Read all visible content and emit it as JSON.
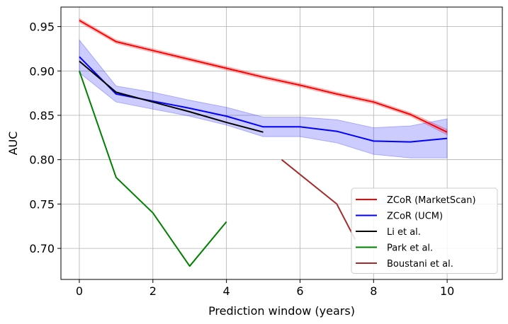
{
  "chart_data": {
    "type": "line",
    "xlabel": "Prediction window (years)",
    "ylabel": "AUC",
    "xlim": [
      -0.5,
      11.5
    ],
    "ylim": [
      0.665,
      0.972
    ],
    "xticks": [
      0,
      2,
      4,
      6,
      8,
      10
    ],
    "yticks": [
      0.7,
      0.75,
      0.8,
      0.85,
      0.9,
      0.95
    ],
    "xtick_labels": [
      "0",
      "2",
      "4",
      "6",
      "8",
      "10"
    ],
    "ytick_labels": [
      "0.70",
      "0.75",
      "0.80",
      "0.85",
      "0.90",
      "0.95"
    ],
    "grid": true,
    "legend_position": "lower-right",
    "series": [
      {
        "name": "ZCoR (MarketScan)",
        "color": "#ff0000",
        "x": [
          0,
          1,
          2,
          3,
          4,
          5,
          6,
          7,
          8,
          9,
          10
        ],
        "y": [
          0.957,
          0.933,
          0.923,
          0.913,
          0.903,
          0.893,
          0.884,
          0.874,
          0.865,
          0.851,
          0.831
        ],
        "band_lower": [
          0.955,
          0.931,
          0.921,
          0.911,
          0.901,
          0.891,
          0.882,
          0.872,
          0.863,
          0.849,
          0.828
        ],
        "band_upper": [
          0.959,
          0.935,
          0.925,
          0.915,
          0.905,
          0.895,
          0.886,
          0.876,
          0.867,
          0.853,
          0.834
        ]
      },
      {
        "name": "ZCoR (UCM)",
        "color": "#0000ff",
        "x": [
          0,
          1,
          2,
          3,
          4,
          5,
          6,
          7,
          8,
          9,
          10
        ],
        "y": [
          0.916,
          0.874,
          0.866,
          0.858,
          0.849,
          0.837,
          0.837,
          0.832,
          0.821,
          0.82,
          0.824
        ],
        "band_lower": [
          0.898,
          0.865,
          0.857,
          0.849,
          0.839,
          0.826,
          0.826,
          0.819,
          0.806,
          0.802,
          0.802
        ],
        "band_upper": [
          0.935,
          0.883,
          0.876,
          0.867,
          0.859,
          0.848,
          0.848,
          0.845,
          0.836,
          0.838,
          0.846
        ]
      },
      {
        "name": "Li et al.",
        "color": "#000000",
        "x": [
          0,
          1,
          2,
          3,
          4,
          5
        ],
        "y": [
          0.911,
          0.876,
          0.865,
          0.854,
          0.842,
          0.831
        ]
      },
      {
        "name": "Park et al.",
        "color": "#008000",
        "x": [
          0,
          1,
          2,
          3,
          4
        ],
        "y": [
          0.9,
          0.78,
          0.74,
          0.68,
          0.73
        ]
      },
      {
        "name": "Boustani et al.",
        "color": "#a52a2a",
        "x": [
          5.5,
          7,
          7.5
        ],
        "y": [
          0.8,
          0.75,
          0.71
        ]
      }
    ]
  }
}
